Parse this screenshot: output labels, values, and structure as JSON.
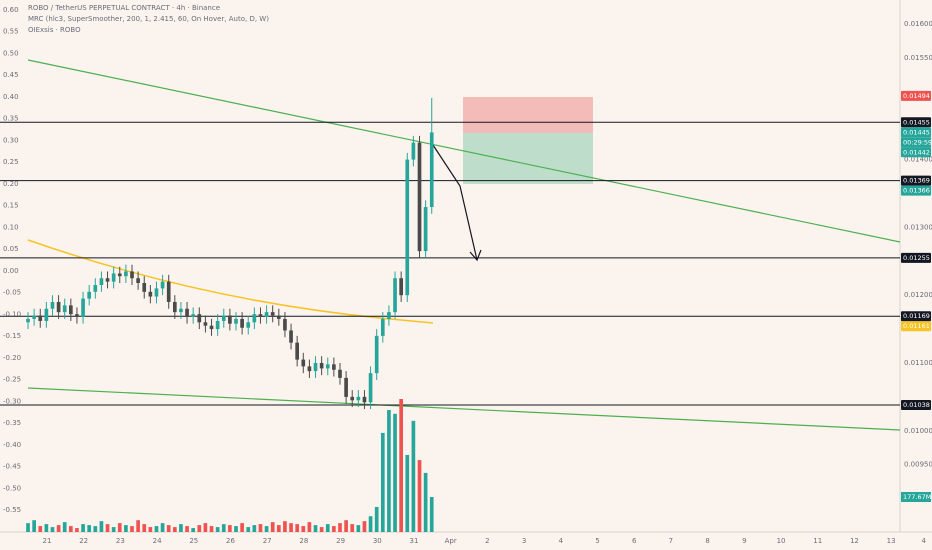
{
  "chart_data": {
    "type": "candlestick",
    "header": [
      "ROBO / TetherUS PERPETUAL CONTRACT · 4h · Binance",
      "MRC (hlc3, SuperSmoother, 200, 1, 2.415, 60, On Hover, Auto, D, W)",
      "OIExsis · ROBO"
    ],
    "open": [
      0.0116,
      0.01165,
      0.0117,
      0.01162,
      0.0118,
      0.0119,
      0.01175,
      0.01185,
      0.01172,
      0.01168,
      0.01195,
      0.01205,
      0.01215,
      0.01225,
      0.0122,
      0.01232,
      0.01228,
      0.01235,
      0.01225,
      0.01218,
      0.01205,
      0.01198,
      0.0121,
      0.0122,
      0.0119,
      0.01175,
      0.0118,
      0.01168,
      0.01172,
      0.0116,
      0.01155,
      0.0115,
      0.01162,
      0.0117,
      0.01158,
      0.01165,
      0.01152,
      0.0116,
      0.01172,
      0.01168,
      0.01175,
      0.0117,
      0.01165,
      0.01148,
      0.0113,
      0.01105,
      0.01095,
      0.01088,
      0.011,
      0.01092,
      0.01098,
      0.0109,
      0.01078,
      0.0105,
      0.01045,
      0.0105,
      0.01042,
      0.01085,
      0.0114,
      0.01165,
      0.01175,
      0.01225,
      0.012,
      0.014,
      0.01425,
      0.01265,
      0.0133
    ],
    "high": [
      0.01175,
      0.0118,
      0.0118,
      0.0119,
      0.012,
      0.012,
      0.01195,
      0.01195,
      0.01182,
      0.01205,
      0.01215,
      0.01225,
      0.01235,
      0.01235,
      0.01242,
      0.01242,
      0.01245,
      0.01245,
      0.01235,
      0.01228,
      0.01215,
      0.0122,
      0.0123,
      0.0123,
      0.012,
      0.0119,
      0.0119,
      0.01182,
      0.01182,
      0.0117,
      0.01165,
      0.01172,
      0.0118,
      0.0118,
      0.01175,
      0.01175,
      0.0117,
      0.01182,
      0.01182,
      0.01185,
      0.01185,
      0.0118,
      0.01175,
      0.01158,
      0.0114,
      0.01115,
      0.01105,
      0.0111,
      0.0111,
      0.01108,
      0.01108,
      0.011,
      0.01088,
      0.0106,
      0.0106,
      0.0106,
      0.01095,
      0.0115,
      0.01175,
      0.01185,
      0.01235,
      0.01235,
      0.0141,
      0.01435,
      0.01435,
      0.0134,
      0.01491
    ],
    "low": [
      0.0115,
      0.01155,
      0.01152,
      0.01152,
      0.0117,
      0.01165,
      0.01165,
      0.01162,
      0.01158,
      0.01158,
      0.01185,
      0.01195,
      0.01205,
      0.0121,
      0.0121,
      0.01218,
      0.01218,
      0.01215,
      0.01208,
      0.01195,
      0.01188,
      0.01188,
      0.012,
      0.0118,
      0.01165,
      0.01165,
      0.01158,
      0.01158,
      0.0115,
      0.01145,
      0.0114,
      0.0114,
      0.01152,
      0.01148,
      0.01148,
      0.01142,
      0.01142,
      0.0115,
      0.01158,
      0.01158,
      0.0116,
      0.01155,
      0.01138,
      0.0112,
      0.01095,
      0.01085,
      0.01078,
      0.01078,
      0.01082,
      0.01082,
      0.0108,
      0.01068,
      0.0104,
      0.01035,
      0.01035,
      0.01032,
      0.01032,
      0.01075,
      0.0113,
      0.01155,
      0.01165,
      0.0119,
      0.0119,
      0.0139,
      0.01255,
      0.01255,
      0.0132
    ],
    "close": [
      0.01165,
      0.0117,
      0.01162,
      0.0118,
      0.0119,
      0.01175,
      0.01185,
      0.01172,
      0.01168,
      0.01195,
      0.01205,
      0.01215,
      0.01225,
      0.0122,
      0.01232,
      0.01228,
      0.01235,
      0.01225,
      0.01218,
      0.01205,
      0.01198,
      0.0121,
      0.0122,
      0.0119,
      0.01175,
      0.0118,
      0.01168,
      0.01172,
      0.0116,
      0.01155,
      0.0115,
      0.01162,
      0.0117,
      0.01158,
      0.01165,
      0.01152,
      0.0116,
      0.01172,
      0.01168,
      0.01175,
      0.0117,
      0.01165,
      0.01148,
      0.0113,
      0.01105,
      0.01095,
      0.01088,
      0.011,
      0.01092,
      0.01098,
      0.0109,
      0.01078,
      0.0105,
      0.01045,
      0.0105,
      0.01042,
      0.01085,
      0.0114,
      0.01165,
      0.01175,
      0.01225,
      0.012,
      0.014,
      0.01425,
      0.01265,
      0.0133,
      0.0144
    ],
    "volume": [
      45,
      60,
      30,
      40,
      25,
      35,
      50,
      30,
      20,
      40,
      35,
      30,
      55,
      40,
      25,
      45,
      35,
      30,
      60,
      40,
      25,
      30,
      45,
      35,
      25,
      40,
      30,
      20,
      35,
      45,
      30,
      25,
      40,
      35,
      30,
      45,
      25,
      35,
      40,
      30,
      50,
      35,
      55,
      45,
      40,
      30,
      50,
      35,
      25,
      40,
      30,
      45,
      60,
      40,
      35,
      55,
      80,
      127,
      503,
      619,
      600,
      675,
      391,
      564,
      365,
      300,
      177.67
    ],
    "volume_last_label": "177.67M",
    "vlim": [
      0,
      2700
    ],
    "up_color": "#26a69a",
    "down_color": "#4a4a4a",
    "vol_up_color": "#26a69a",
    "vol_down_color": "#ef5350",
    "xlim": [
      -4.58,
      142.55
    ],
    "xticks": [
      {
        "value": 3.1,
        "label": "21"
      },
      {
        "value": 9.1,
        "label": "22"
      },
      {
        "value": 15.1,
        "label": "23"
      },
      {
        "value": 21.1,
        "label": "24"
      },
      {
        "value": 27.1,
        "label": "25"
      },
      {
        "value": 33.1,
        "label": "26"
      },
      {
        "value": 39.1,
        "label": "27"
      },
      {
        "value": 45.1,
        "label": "28"
      },
      {
        "value": 51.1,
        "label": "29"
      },
      {
        "value": 57.1,
        "label": "30"
      },
      {
        "value": 63.1,
        "label": "31"
      },
      {
        "value": 69.1,
        "label": "Apr"
      },
      {
        "value": 75.1,
        "label": "2"
      },
      {
        "value": 81.1,
        "label": "3"
      },
      {
        "value": 87.1,
        "label": "4"
      },
      {
        "value": 93.1,
        "label": "5"
      },
      {
        "value": 99.1,
        "label": "6"
      },
      {
        "value": 105.1,
        "label": "7"
      },
      {
        "value": 111.1,
        "label": "8"
      },
      {
        "value": 117.1,
        "label": "9"
      },
      {
        "value": 123.1,
        "label": "10"
      },
      {
        "value": 129.1,
        "label": "11"
      },
      {
        "value": 135.1,
        "label": "12"
      },
      {
        "value": 141.1,
        "label": "13"
      },
      {
        "value": 147.1,
        "label": "4"
      }
    ],
    "ylim": [
      0.008507,
      0.016354
    ],
    "yticks": [
      {
        "value": 0.016,
        "label": "0.01600"
      },
      {
        "value": 0.0155,
        "label": "0.01550"
      },
      {
        "value": 0.014,
        "label": "0.01400"
      },
      {
        "value": 0.013,
        "label": "0.01300"
      },
      {
        "value": 0.012,
        "label": "0.01200"
      },
      {
        "value": 0.011,
        "label": "0.01100"
      },
      {
        "value": 0.01,
        "label": "0.01000"
      },
      {
        "value": 0.0095,
        "label": "0.00950"
      }
    ],
    "y2lim": [
      -0.6006,
      0.623
    ],
    "y2ticks": [
      {
        "value": 0.6,
        "label": "0.60"
      },
      0.55,
      {
        "value": 0.5,
        "label": "0.50"
      },
      0.45,
      {
        "value": 0.4,
        "label": "0.40"
      },
      0.35,
      {
        "value": 0.3,
        "label": "0.30"
      },
      0.25,
      {
        "value": 0.2,
        "label": "0.20"
      },
      0.15,
      {
        "value": 0.1,
        "label": "0.10"
      },
      0.05,
      {
        "value": 0,
        "label": "0.00"
      },
      -0.05,
      {
        "value": -0.1,
        "label": "-0.10"
      },
      -0.15,
      {
        "value": -0.2,
        "label": "-0.20"
      },
      -0.25,
      {
        "value": -0.3,
        "label": "-0.30"
      },
      -0.35,
      {
        "value": -0.4,
        "label": "-0.40"
      },
      -0.45,
      {
        "value": -0.5,
        "label": "-0.50"
      },
      -0.55
    ],
    "levels": [
      0.01455,
      0.01369,
      0.01255,
      0.01169,
      0.01038
    ],
    "tags": [
      {
        "value": 0.01494,
        "color": "#ef5350"
      },
      {
        "value": 0.01455,
        "color": "#131722"
      },
      {
        "value": 0.01445,
        "color": "#26a69a"
      },
      {
        "value": 0.01442,
        "color": "#26a69a"
      },
      {
        "value": 0.01369,
        "color": "#131722"
      },
      {
        "value": 0.01366,
        "color": "#26a69a"
      },
      {
        "value": 0.01255,
        "color": "#131722"
      },
      {
        "value": 0.01169,
        "color": "#131722"
      },
      {
        "value": 0.01161,
        "color": "#f7c325"
      },
      {
        "value": 0.01038,
        "color": "#131722"
      }
    ],
    "countdown": "00:29:59"
  }
}
